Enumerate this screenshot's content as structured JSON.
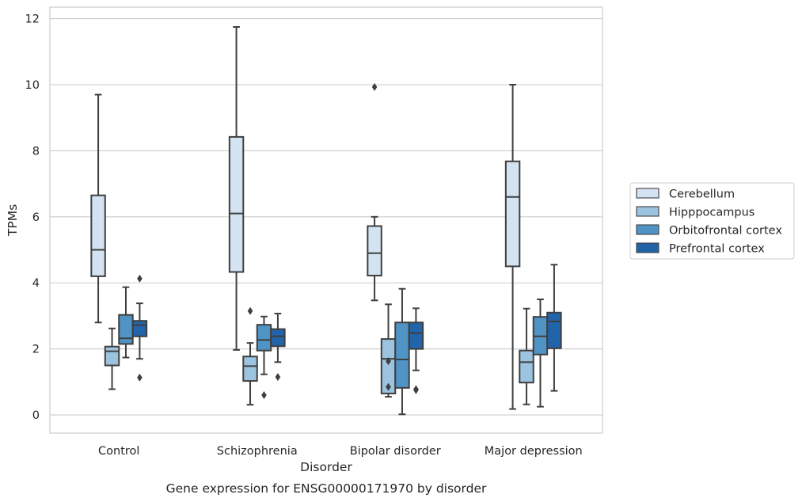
{
  "chart_data": {
    "type": "box",
    "caption": "Gene expression for ENSG00000171970 by disorder",
    "xlabel": "Disorder",
    "ylabel": "TPMs",
    "ylim": [
      -0.55,
      12.35
    ],
    "yticks": [
      0,
      2,
      4,
      6,
      8,
      10,
      12
    ],
    "grid": "horizontal",
    "legend_position": "right",
    "categories": [
      "Control",
      "Schizophrenia",
      "Bipolar disorder",
      "Major depression"
    ],
    "series": [
      {
        "name": "Cerebellum",
        "color": "#d3e3f2",
        "boxes": [
          {
            "whislo": 2.8,
            "q1": 4.2,
            "med": 5.0,
            "q3": 6.65,
            "whishi": 9.7,
            "fliers": []
          },
          {
            "whislo": 1.97,
            "q1": 4.33,
            "med": 6.1,
            "q3": 8.42,
            "whishi": 11.75,
            "fliers": []
          },
          {
            "whislo": 3.47,
            "q1": 4.22,
            "med": 4.9,
            "q3": 5.72,
            "whishi": 6.0,
            "fliers": [
              9.93
            ]
          },
          {
            "whislo": 0.18,
            "q1": 4.5,
            "med": 6.6,
            "q3": 7.68,
            "whishi": 10.0,
            "fliers": []
          }
        ]
      },
      {
        "name": "Hipppocampus",
        "color": "#9cc3df",
        "boxes": [
          {
            "whislo": 0.78,
            "q1": 1.5,
            "med": 1.93,
            "q3": 2.07,
            "whishi": 2.62,
            "fliers": []
          },
          {
            "whislo": 0.31,
            "q1": 1.03,
            "med": 1.48,
            "q3": 1.77,
            "whishi": 2.18,
            "fliers": [
              3.15
            ]
          },
          {
            "whislo": 0.55,
            "q1": 0.65,
            "med": 1.7,
            "q3": 2.3,
            "whishi": 3.35,
            "fliers": [
              1.63,
              0.85
            ]
          },
          {
            "whislo": 0.32,
            "q1": 0.98,
            "med": 1.6,
            "q3": 1.95,
            "whishi": 3.22,
            "fliers": []
          }
        ]
      },
      {
        "name": "Orbitofrontal cortex",
        "color": "#5094c6",
        "boxes": [
          {
            "whislo": 1.74,
            "q1": 2.15,
            "med": 2.32,
            "q3": 3.03,
            "whishi": 3.87,
            "fliers": []
          },
          {
            "whislo": 1.23,
            "q1": 1.95,
            "med": 2.27,
            "q3": 2.73,
            "whishi": 2.98,
            "fliers": [
              0.6
            ]
          },
          {
            "whislo": 0.02,
            "q1": 0.82,
            "med": 1.68,
            "q3": 2.8,
            "whishi": 3.82,
            "fliers": []
          },
          {
            "whislo": 0.25,
            "q1": 1.83,
            "med": 2.38,
            "q3": 2.97,
            "whishi": 3.5,
            "fliers": []
          }
        ]
      },
      {
        "name": "Prefrontal cortex",
        "color": "#2264a9",
        "boxes": [
          {
            "whislo": 1.7,
            "q1": 2.38,
            "med": 2.72,
            "q3": 2.85,
            "whishi": 3.38,
            "fliers": [
              4.13,
              1.13
            ]
          },
          {
            "whislo": 1.6,
            "q1": 2.08,
            "med": 2.38,
            "q3": 2.6,
            "whishi": 3.07,
            "fliers": [
              1.15
            ]
          },
          {
            "whislo": 1.35,
            "q1": 2.0,
            "med": 2.48,
            "q3": 2.8,
            "whishi": 3.23,
            "fliers": [
              0.78,
              0.75
            ]
          },
          {
            "whislo": 0.73,
            "q1": 2.02,
            "med": 2.83,
            "q3": 3.1,
            "whishi": 4.55,
            "fliers": []
          }
        ]
      }
    ]
  }
}
